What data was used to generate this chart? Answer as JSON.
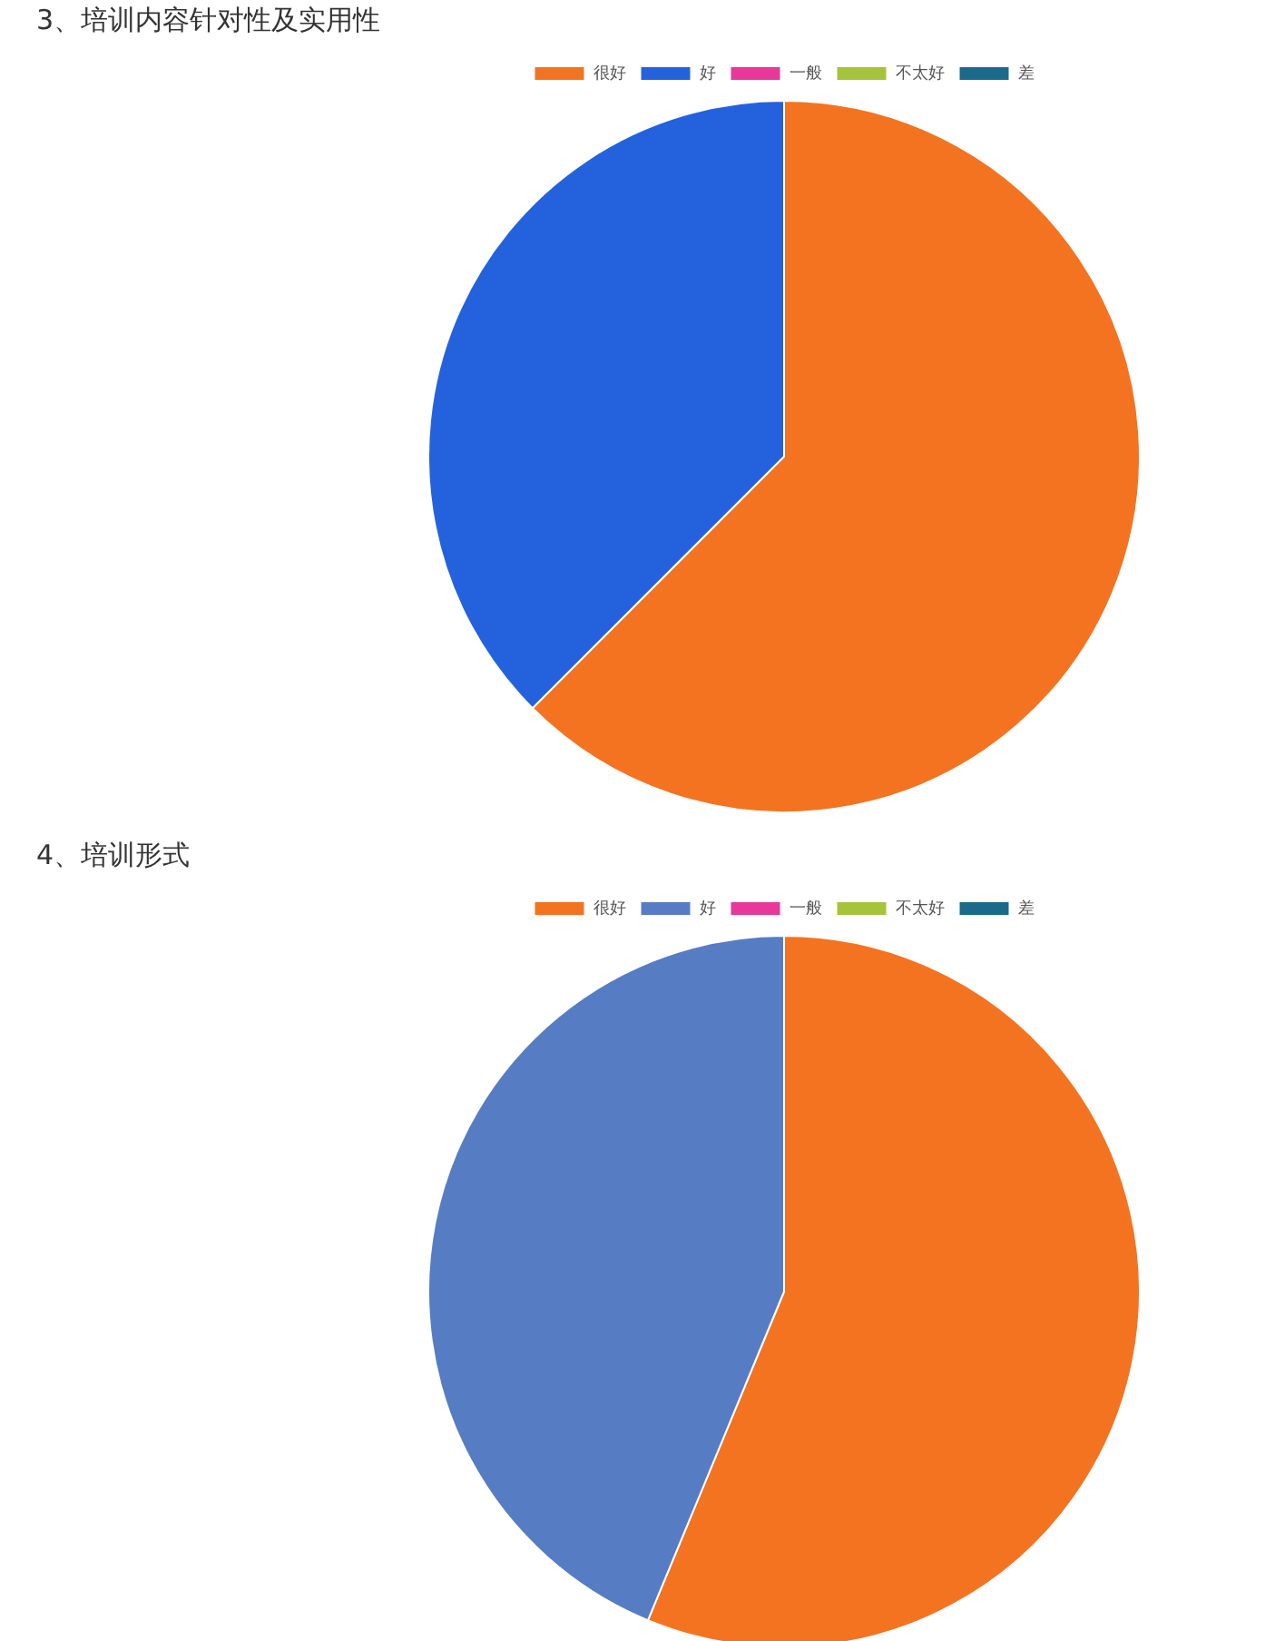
{
  "chart_data": [
    {
      "type": "pie",
      "title": "3、培训内容针对性及实用性",
      "categories": [
        "很好",
        "好",
        "一般",
        "不太好",
        "差"
      ],
      "values": [
        62.5,
        37.5,
        0,
        0,
        0
      ],
      "colors": [
        "#f47321",
        "#2462dd",
        "#e8389a",
        "#a5c33b",
        "#1b6a8c"
      ],
      "legend": "top"
    },
    {
      "type": "pie",
      "title": "4、培训形式",
      "categories": [
        "很好",
        "好",
        "一般",
        "不太好",
        "差"
      ],
      "values": [
        56.25,
        43.75,
        0,
        0,
        0
      ],
      "colors": [
        "#f47321",
        "#567cc4",
        "#e8389a",
        "#a5c33b",
        "#1b6a8c"
      ],
      "legend": "top"
    }
  ]
}
